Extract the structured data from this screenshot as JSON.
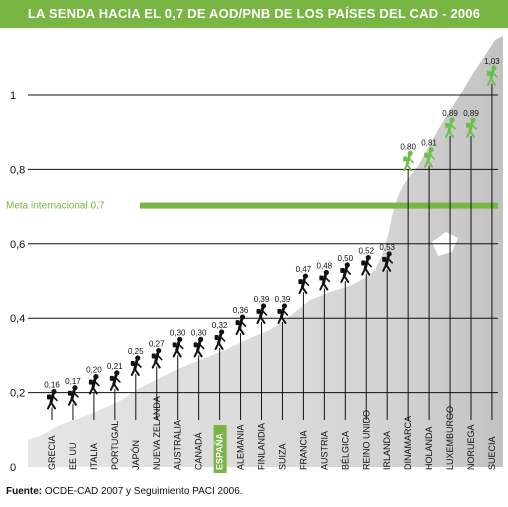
{
  "title": "LA SENDA HACIA EL 0,7 DE AOD/PNB DE LOS PAÍSES DEL CAD - 2006",
  "source": {
    "label": "Fuente:",
    "text": "OCDE-CAD 2007 y Seguimiento PACI 2006."
  },
  "colors": {
    "title_band": "#78b543",
    "meta_line": "#78b543",
    "highlight": "#78b543",
    "mountain": "#d9d9d9",
    "figure_dark": "#111111",
    "figure_green": "#6cc04a"
  },
  "chart_data": {
    "type": "bar",
    "categories": [
      "GRECIA",
      "EE UU",
      "ITALIA",
      "PORTUGAL",
      "JAPÓN",
      "NUEVA ZELANDA",
      "AUSTRALIA",
      "CANADÁ",
      "ESPAÑA",
      "ALEMANIA",
      "FINLANDIA",
      "SUIZA",
      "FRANCIA",
      "AUSTRIA",
      "BÉLGICA",
      "REINO UNIDO",
      "IRLANDA",
      "DINAMARCA",
      "HOLANDA",
      "LUXEMBURGO",
      "NORUEGA",
      "SUECIA"
    ],
    "values": [
      0.16,
      0.17,
      0.2,
      0.21,
      0.25,
      0.27,
      0.3,
      0.3,
      0.32,
      0.36,
      0.39,
      0.39,
      0.47,
      0.48,
      0.5,
      0.52,
      0.53,
      0.8,
      0.81,
      0.89,
      0.89,
      1.03
    ],
    "value_labels": [
      "0,16",
      "0,17",
      "0,20",
      "0,21",
      "0,25",
      "0,27",
      "0,30",
      "0,30",
      "0,32",
      "0,36",
      "0,39",
      "0,39",
      "0,47",
      "0,48",
      "0,50",
      "0,52",
      "0,53",
      "0,80",
      "0,81",
      "0,89",
      "0,89",
      "1,03"
    ],
    "highlight_category": "ESPAÑA",
    "above_target_categories": [
      "DINAMARCA",
      "HOLANDA",
      "LUXEMBURGO",
      "NORUEGA",
      "SUECIA"
    ],
    "yticks": [
      0,
      0.2,
      0.4,
      0.6,
      0.8,
      1
    ],
    "ytick_labels": [
      "0",
      "0,2",
      "0,4",
      "0,6",
      "0,8",
      "1"
    ],
    "ylim": [
      0,
      1.1
    ],
    "reference_line": {
      "value": 0.7,
      "label": "Meta internacional 0,7"
    },
    "grid": true,
    "title": "LA SENDA HACIA EL 0,7 DE AOD/PNB DE LOS PAÍSES DEL CAD - 2006",
    "xlabel": "",
    "ylabel": ""
  }
}
